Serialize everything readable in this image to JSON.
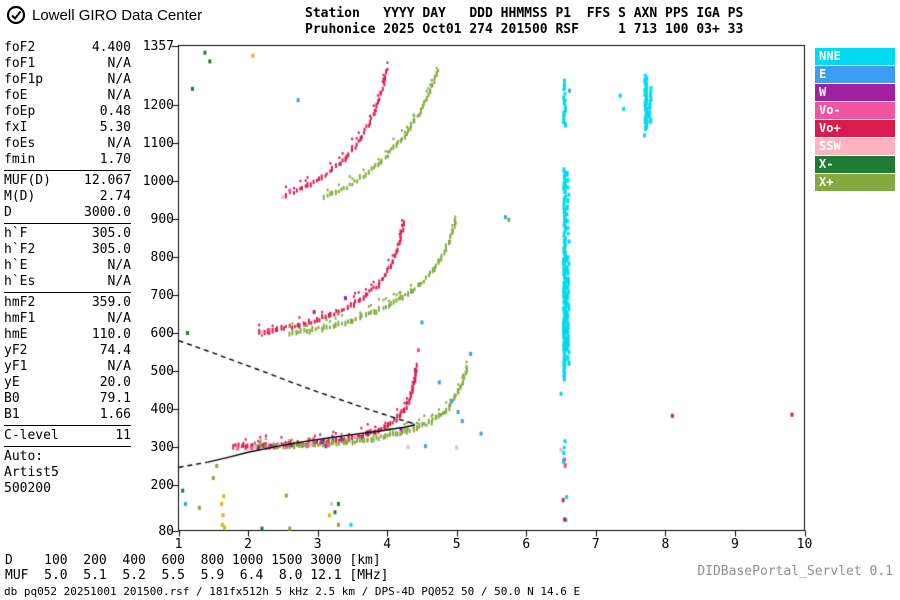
{
  "logo": {
    "text": "Lowell GIRO Data Center"
  },
  "header": {
    "line1": "Station   YYYY DAY   DDD HHMMSS P1  FFS S AXN PPS IGA PS",
    "line2": "Pruhonice 2025 Oct01 274 201500 RSF     1 713 100 03+ 33"
  },
  "params": {
    "groups": [
      {
        "divider": true,
        "rows": [
          {
            "label": "foF2",
            "value": "4.400"
          },
          {
            "label": "foF1",
            "value": "N/A"
          },
          {
            "label": "foF1p",
            "value": "N/A"
          },
          {
            "label": "foE",
            "value": "N/A"
          },
          {
            "label": "foEp",
            "value": "0.48"
          },
          {
            "label": "fxI",
            "value": "5.30"
          },
          {
            "label": "foEs",
            "value": "N/A"
          },
          {
            "label": "fmin",
            "value": "1.70"
          }
        ]
      },
      {
        "divider": true,
        "rows": [
          {
            "label": "MUF(D)",
            "value": "12.067"
          },
          {
            "label": "M(D)",
            "value": "2.74"
          },
          {
            "label": "D",
            "value": "3000.0"
          }
        ]
      },
      {
        "divider": true,
        "rows": [
          {
            "label": "h`F",
            "value": "305.0"
          },
          {
            "label": "h`F2",
            "value": "305.0"
          },
          {
            "label": "h`E",
            "value": "N/A"
          },
          {
            "label": "h`Es",
            "value": "N/A"
          }
        ]
      },
      {
        "divider": true,
        "rows": [
          {
            "label": "hmF2",
            "value": "359.0"
          },
          {
            "label": "hmF1",
            "value": "N/A"
          },
          {
            "label": "hmE",
            "value": "110.0"
          },
          {
            "label": "yF2",
            "value": "74.4"
          },
          {
            "label": "yF1",
            "value": "N/A"
          },
          {
            "label": "yE",
            "value": "20.0"
          },
          {
            "label": "B0",
            "value": "79.1"
          },
          {
            "label": "B1",
            "value": "1.66"
          }
        ]
      },
      {
        "divider": true,
        "rows": [
          {
            "label": "C-level",
            "value": "11"
          }
        ]
      },
      {
        "divider": false,
        "rows": [
          {
            "label": "Auto:",
            "value": ""
          },
          {
            "label": "Artist5",
            "value": ""
          },
          {
            "label": "500200",
            "value": ""
          }
        ]
      }
    ]
  },
  "legend": {
    "items": [
      {
        "label": "NNE",
        "color": "#00D9EE"
      },
      {
        "label": "E",
        "color": "#3D9DF5"
      },
      {
        "label": "W",
        "color": "#A020A0"
      },
      {
        "label": "Vo-",
        "color": "#F0559F"
      },
      {
        "label": "Vo+",
        "color": "#DB1A4D"
      },
      {
        "label": "SSW",
        "color": "#FFB3C0"
      },
      {
        "label": "X-",
        "color": "#1E7A34"
      },
      {
        "label": "X+",
        "color": "#86A93E"
      }
    ]
  },
  "muf_table": {
    "row1_label": "D",
    "row2_label": "MUF",
    "d_values": [
      "100",
      "200",
      "400",
      "600",
      "800",
      "1000",
      "1500",
      "3000"
    ],
    "muf_values": [
      "5.0",
      "5.1",
      "5.2",
      "5.5",
      "5.9",
      "6.4",
      "8.0",
      "12.1"
    ],
    "d_unit": "[km]",
    "muf_unit": "[MHz]"
  },
  "footer": {
    "info": "db pq052 20251001 201500.rsf / 181fx512h 5 kHz 2.5 km / DPS-4D PQ052 50 / 50.0 N 14.6 E",
    "servlet": "DIDBasePortal_Servlet 0.1"
  },
  "chart_data": {
    "type": "scatter",
    "title": "",
    "xlabel": "",
    "ylabel": "",
    "xlim": [
      1,
      10
    ],
    "ylim": [
      80,
      1357
    ],
    "x_ticks": [
      1,
      2,
      3,
      4,
      5,
      6,
      7,
      8,
      9,
      10
    ],
    "y_ticks": [
      80,
      200,
      300,
      400,
      500,
      600,
      700,
      800,
      900,
      1000,
      1100,
      1200,
      1357
    ],
    "grid": false,
    "legend_position": "top-right",
    "series": [
      {
        "name": "F-trace-1st-order-O",
        "color": "#DB1A4D",
        "step": 2.2,
        "points": [
          [
            1.8,
            302
          ],
          [
            2.0,
            303
          ],
          [
            2.2,
            304
          ],
          [
            2.4,
            305
          ],
          [
            2.6,
            307
          ],
          [
            2.8,
            309
          ],
          [
            3.0,
            311
          ],
          [
            3.2,
            314
          ],
          [
            3.4,
            320
          ],
          [
            3.6,
            328
          ],
          [
            3.8,
            339
          ],
          [
            3.95,
            351
          ],
          [
            4.08,
            365
          ],
          [
            4.18,
            382
          ],
          [
            4.27,
            405
          ],
          [
            4.33,
            430
          ],
          [
            4.37,
            458
          ],
          [
            4.4,
            488
          ],
          [
            4.42,
            518
          ]
        ]
      },
      {
        "name": "F-trace-1st-order-X",
        "color": "#86A93E",
        "step": 2.4,
        "points": [
          [
            2.1,
            301
          ],
          [
            2.4,
            302
          ],
          [
            2.7,
            304
          ],
          [
            3.0,
            307
          ],
          [
            3.3,
            311
          ],
          [
            3.6,
            317
          ],
          [
            3.9,
            325
          ],
          [
            4.15,
            335
          ],
          [
            4.4,
            349
          ],
          [
            4.6,
            364
          ],
          [
            4.75,
            381
          ],
          [
            4.88,
            403
          ],
          [
            4.98,
            430
          ],
          [
            5.06,
            460
          ],
          [
            5.12,
            492
          ],
          [
            5.15,
            515
          ]
        ]
      },
      {
        "name": "F-trace-2nd-order-O",
        "color": "#DB1A4D",
        "step": 3.0,
        "points": [
          [
            2.15,
            600
          ],
          [
            2.35,
            607
          ],
          [
            2.55,
            614
          ],
          [
            2.75,
            622
          ],
          [
            2.95,
            632
          ],
          [
            3.15,
            645
          ],
          [
            3.35,
            661
          ],
          [
            3.55,
            681
          ],
          [
            3.72,
            703
          ],
          [
            3.87,
            728
          ],
          [
            3.99,
            757
          ],
          [
            4.09,
            792
          ],
          [
            4.16,
            830
          ],
          [
            4.21,
            865
          ],
          [
            4.24,
            900
          ]
        ]
      },
      {
        "name": "F-trace-2nd-order-X",
        "color": "#86A93E",
        "step": 3.0,
        "points": [
          [
            2.6,
            600
          ],
          [
            2.85,
            606
          ],
          [
            3.1,
            614
          ],
          [
            3.35,
            625
          ],
          [
            3.6,
            639
          ],
          [
            3.85,
            657
          ],
          [
            4.1,
            679
          ],
          [
            4.3,
            703
          ],
          [
            4.5,
            733
          ],
          [
            4.68,
            770
          ],
          [
            4.82,
            812
          ],
          [
            4.93,
            858
          ],
          [
            5.0,
            908
          ]
        ]
      },
      {
        "name": "F-trace-3rd-order-O",
        "color": "#DB1A4D",
        "step": 3.2,
        "points": [
          [
            2.55,
            965
          ],
          [
            2.7,
            975
          ],
          [
            2.9,
            992
          ],
          [
            3.1,
            1015
          ],
          [
            3.3,
            1043
          ],
          [
            3.48,
            1078
          ],
          [
            3.64,
            1118
          ],
          [
            3.78,
            1165
          ],
          [
            3.89,
            1218
          ],
          [
            3.96,
            1262
          ],
          [
            4.0,
            1300
          ]
        ]
      },
      {
        "name": "F-trace-3rd-order-X",
        "color": "#86A93E",
        "step": 3.2,
        "points": [
          [
            3.1,
            958
          ],
          [
            3.3,
            972
          ],
          [
            3.5,
            992
          ],
          [
            3.7,
            1018
          ],
          [
            3.9,
            1050
          ],
          [
            4.1,
            1088
          ],
          [
            4.3,
            1133
          ],
          [
            4.48,
            1183
          ],
          [
            4.63,
            1240
          ],
          [
            4.74,
            1295
          ]
        ]
      }
    ],
    "rfi_columns": [
      {
        "f": 6.55,
        "color": "#00D9EE",
        "segments": [
          [
            250,
            320,
            16
          ],
          [
            480,
            560,
            6
          ],
          [
            562,
            830,
            3.5
          ],
          [
            835,
            1035,
            7
          ],
          [
            1150,
            1265,
            8
          ]
        ]
      },
      {
        "f": 6.6,
        "color": "#00D9EE",
        "segments": [
          [
            520,
            800,
            9
          ],
          [
            840,
            1020,
            18
          ]
        ]
      },
      {
        "f": 7.72,
        "color": "#00D9EE",
        "segments": [
          [
            1140,
            1275,
            4.5
          ]
        ]
      },
      {
        "f": 7.78,
        "color": "#00D9EE",
        "segments": [
          [
            1155,
            1250,
            9
          ]
        ]
      }
    ],
    "point_series": [
      {
        "name": "W-echo-dots",
        "color": "#A020A0",
        "points": [
          [
            2.33,
            303
          ],
          [
            2.62,
            306
          ],
          [
            3.06,
            313
          ],
          [
            3.34,
            321
          ],
          [
            3.12,
            302
          ],
          [
            2.15,
            297
          ],
          [
            3.72,
            339
          ],
          [
            4.2,
            346
          ],
          [
            2.95,
            655
          ],
          [
            3.4,
            692
          ]
        ]
      },
      {
        "name": "E-echo-dots",
        "color": "#3D9DF5",
        "points": [
          [
            4.93,
            420
          ],
          [
            5.02,
            392
          ],
          [
            5.08,
            368
          ],
          [
            4.55,
            302
          ],
          [
            5.35,
            335
          ],
          [
            2.72,
            1213
          ],
          [
            4.5,
            628
          ],
          [
            6.62,
            1238
          ],
          [
            5.2,
            545
          ],
          [
            4.75,
            470
          ],
          [
            1.1,
            150
          ],
          [
            6.57,
            108
          ],
          [
            5.7,
            905
          ]
        ]
      },
      {
        "name": "SSW-echo-dots",
        "color": "#FFB3C0",
        "points": [
          [
            2.1,
            300
          ],
          [
            2.45,
            304
          ],
          [
            2.9,
            308
          ],
          [
            3.55,
            327
          ],
          [
            4.3,
            300
          ],
          [
            6.5,
            292
          ],
          [
            3.2,
            150
          ],
          [
            5.0,
            298
          ],
          [
            2.2,
            600
          ],
          [
            2.5,
            958
          ]
        ]
      },
      {
        "name": "Vo-minus-dots",
        "color": "#F0559F",
        "points": [
          [
            1.85,
            296
          ],
          [
            2.05,
            297
          ],
          [
            2.3,
            298
          ],
          [
            2.55,
            300
          ],
          [
            2.85,
            302
          ],
          [
            3.15,
            305
          ],
          [
            2.3,
            608
          ],
          [
            2.6,
            975
          ],
          [
            6.55,
            267
          ],
          [
            6.56,
            252
          ],
          [
            4.45,
            555
          ]
        ]
      },
      {
        "name": "Vo-plus-dots",
        "color": "#DB1A4D",
        "points": [
          [
            6.55,
            109
          ],
          [
            8.1,
            382
          ],
          [
            9.82,
            385
          ],
          [
            6.53,
            160
          ]
        ]
      },
      {
        "name": "X-minus-dots",
        "color": "#1E7A34",
        "points": [
          [
            1.13,
            600
          ],
          [
            1.2,
            1243
          ],
          [
            1.38,
            1338
          ],
          [
            3.3,
            150
          ],
          [
            3.25,
            128
          ],
          [
            1.06,
            185
          ],
          [
            2.2,
            85
          ],
          [
            1.45,
            1315
          ]
        ]
      },
      {
        "name": "X-plus-dots",
        "color": "#86A93E",
        "points": [
          [
            1.3,
            140
          ],
          [
            1.55,
            250
          ],
          [
            2.6,
            85
          ],
          [
            3.3,
            95
          ],
          [
            1.5,
            218
          ],
          [
            2.55,
            172
          ],
          [
            5.75,
            898
          ]
        ]
      },
      {
        "name": "gold-noise-dots",
        "color": "#D8B60A",
        "points": [
          [
            1.63,
            95
          ],
          [
            1.64,
            120
          ],
          [
            1.62,
            150
          ],
          [
            1.65,
            170
          ],
          [
            1.66,
            88
          ],
          [
            3.17,
            120
          ],
          [
            2.07,
            1330
          ]
        ]
      },
      {
        "name": "NNE-dots",
        "color": "#00D9EE",
        "points": [
          [
            3.48,
            95
          ],
          [
            6.58,
            168
          ],
          [
            7.7,
            1120
          ],
          [
            6.5,
            440
          ],
          [
            7.35,
            1225
          ],
          [
            7.4,
            1190
          ]
        ]
      }
    ],
    "profile": {
      "color": "#000000",
      "solid": [
        [
          1.42,
          260
        ],
        [
          1.7,
          272
        ],
        [
          2.0,
          286
        ],
        [
          2.4,
          301
        ],
        [
          2.8,
          314
        ],
        [
          3.2,
          325
        ],
        [
          3.6,
          335
        ],
        [
          3.9,
          342
        ],
        [
          4.1,
          348
        ],
        [
          4.25,
          352
        ],
        [
          4.33,
          355
        ],
        [
          4.38,
          357
        ],
        [
          4.4,
          359
        ]
      ],
      "dashed_bottom": [
        [
          1.0,
          246
        ],
        [
          1.15,
          251
        ],
        [
          1.3,
          256
        ],
        [
          1.42,
          260
        ]
      ],
      "dashed_top": [
        [
          1.0,
          580
        ],
        [
          1.4,
          554
        ],
        [
          1.8,
          527
        ],
        [
          2.2,
          500
        ],
        [
          2.6,
          472
        ],
        [
          3.0,
          445
        ],
        [
          3.4,
          420
        ],
        [
          3.7,
          401
        ],
        [
          3.95,
          386
        ],
        [
          4.15,
          374
        ],
        [
          4.3,
          366
        ],
        [
          4.4,
          360
        ]
      ]
    }
  }
}
